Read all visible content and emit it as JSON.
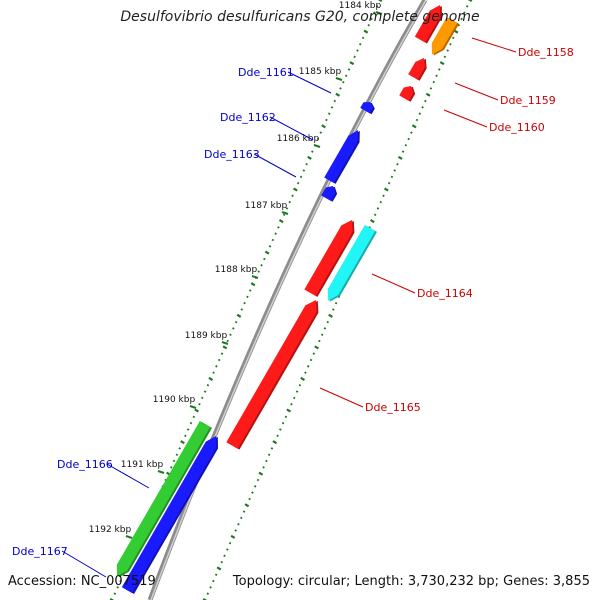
{
  "title": "Desulfovibrio desulfuricans G20, complete genome",
  "footer": {
    "accession": "Accession: NC_007519",
    "topology": "Topology: circular; Length: 3,730,232 bp; Genes: 3,855"
  },
  "colors": {
    "backbone": "#8c8c8c",
    "tick": "#1f7a1f",
    "label_forward": "#0000cc",
    "label_reverse": "#cc0000",
    "gene_red": "#ff1a1a",
    "gene_orange": "#ff9900",
    "gene_blue": "#1a1aff",
    "gene_cyan": "#22f5f5",
    "gene_green": "#33cc33"
  },
  "kbp_ticks": [
    "1184 kbp",
    "1185 kbp",
    "1186 kbp",
    "1187 kbp",
    "1188 kbp",
    "1189 kbp",
    "1190 kbp",
    "1191 kbp",
    "1192 kbp"
  ],
  "genes": [
    {
      "label": "Dde_1158",
      "strand": "reverse",
      "color": "gene_orange"
    },
    {
      "label": "Dde_1159",
      "strand": "reverse",
      "color": "gene_red"
    },
    {
      "label": "Dde_1160",
      "strand": "reverse",
      "color": "gene_red"
    },
    {
      "label": "Dde_1161",
      "strand": "forward",
      "color": "gene_blue"
    },
    {
      "label": "Dde_1162",
      "strand": "forward",
      "color": "gene_blue"
    },
    {
      "label": "Dde_1163",
      "strand": "forward",
      "color": "gene_blue"
    },
    {
      "label": "Dde_1164",
      "strand": "reverse",
      "color": "gene_cyan"
    },
    {
      "label": "Dde_1165",
      "strand": "reverse",
      "color": "gene_red"
    },
    {
      "label": "Dde_1166",
      "strand": "forward",
      "color": "gene_green"
    },
    {
      "label": "Dde_1167",
      "strand": "forward",
      "color": "gene_blue"
    }
  ]
}
